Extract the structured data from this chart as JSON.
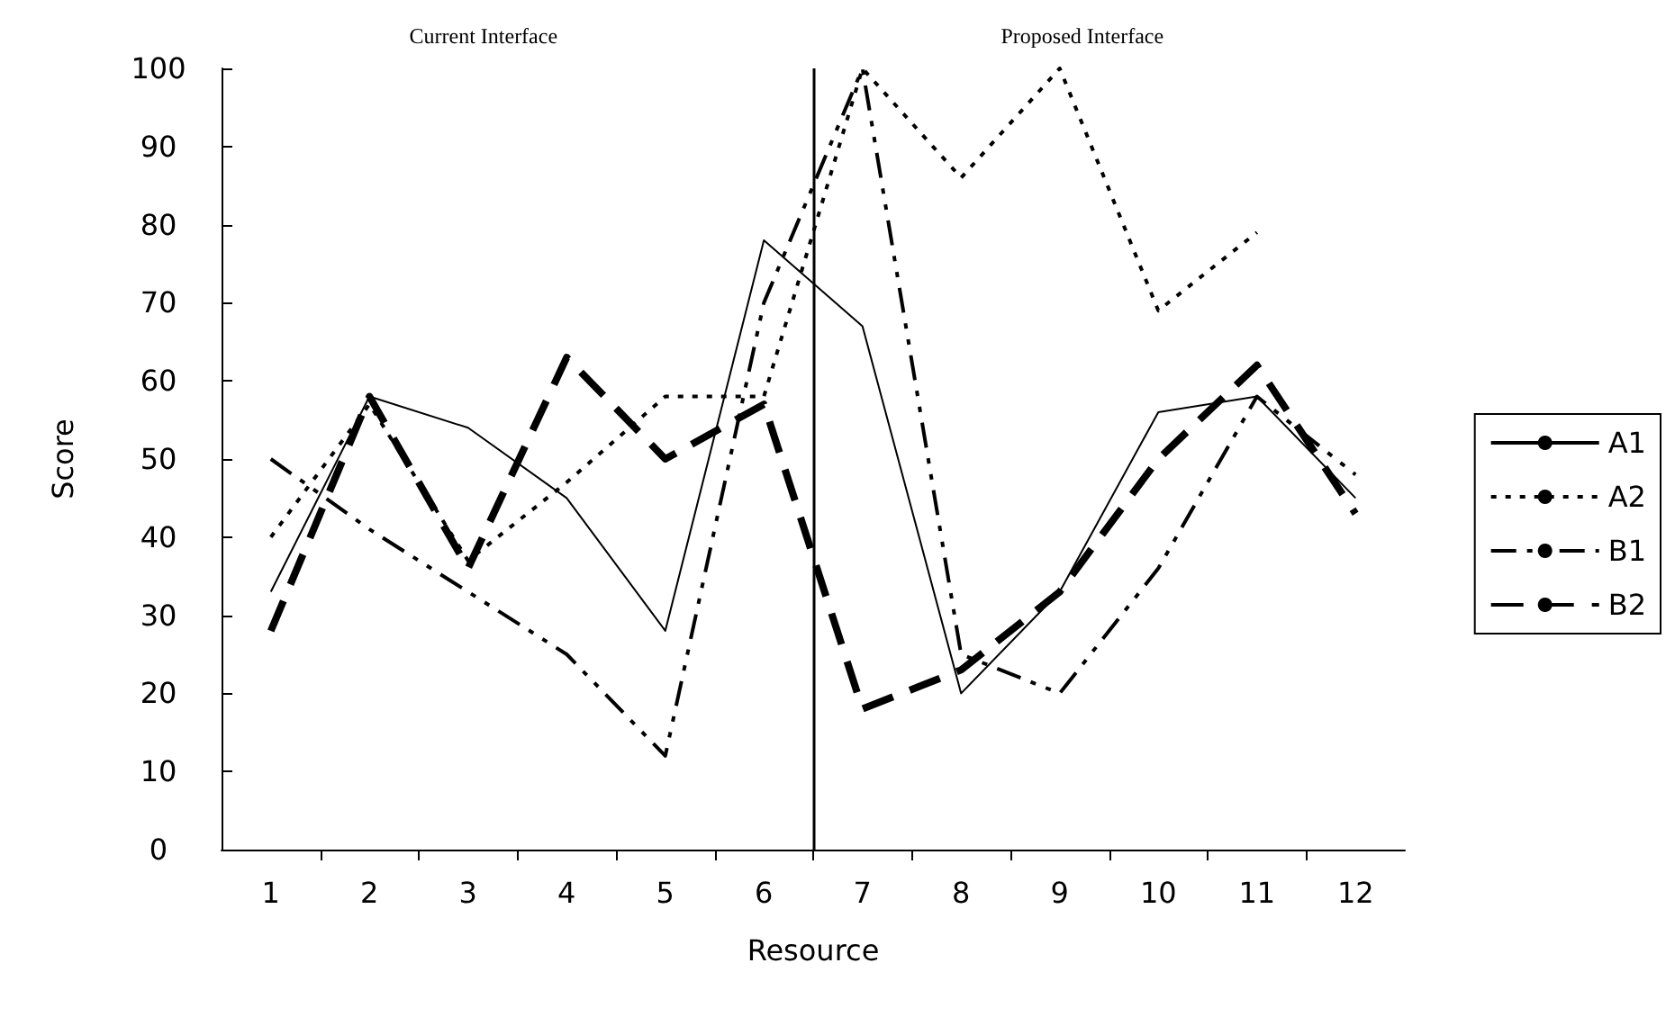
{
  "chart_data": {
    "type": "line",
    "xlabel": "Resource",
    "ylabel": "Score",
    "annotations": [
      "Current Interface",
      "Proposed Interface"
    ],
    "x": [
      1,
      2,
      3,
      4,
      5,
      6,
      7,
      8,
      9,
      10,
      11,
      12
    ],
    "xlim": [
      0.5,
      12.5
    ],
    "xticks": [
      1,
      2,
      3,
      4,
      5,
      6,
      7,
      8,
      9,
      10,
      11,
      12
    ],
    "ylim": [
      0,
      100
    ],
    "yticks": [
      0,
      10,
      20,
      30,
      40,
      50,
      60,
      70,
      80,
      90,
      100
    ],
    "series": [
      {
        "name": "A1",
        "color": "#000000",
        "line_style": "solid",
        "values": [
          33,
          58,
          54,
          45,
          28,
          78,
          67,
          20,
          33,
          56,
          58,
          45
        ]
      },
      {
        "name": "A2",
        "color": "#000000",
        "line_style": "dotted",
        "values": [
          40,
          57,
          37,
          47,
          58,
          58,
          100,
          86,
          100,
          69,
          79,
          null
        ]
      },
      {
        "name": "B1",
        "color": "#000000",
        "line_style": "dashed",
        "values": [
          50,
          41,
          33,
          25,
          12,
          70,
          100,
          25,
          20,
          36,
          58,
          48
        ]
      },
      {
        "name": "B2",
        "color": "#000000",
        "line_style": "dashed",
        "values": [
          28,
          58,
          36,
          63,
          50,
          57,
          18,
          23,
          33,
          50,
          62,
          43
        ]
      }
    ],
    "ref_lines": [
      {
        "axis": "x",
        "value": 6.5,
        "color": "#000000"
      }
    ],
    "marker": "none",
    "grid": false,
    "legend": "right"
  }
}
